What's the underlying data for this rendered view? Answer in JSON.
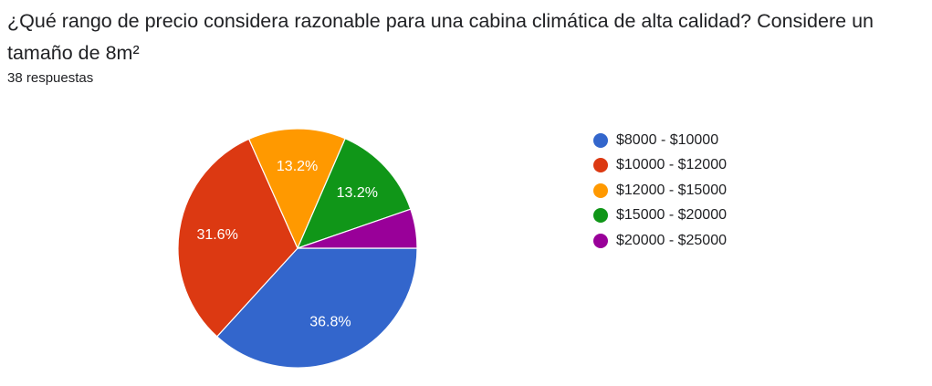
{
  "question": {
    "title": "¿Qué rango de precio considera razonable para una cabina climática de alta calidad?  Considere un tamaño de 8m²",
    "responses": "38 respuestas"
  },
  "chart_data": {
    "type": "pie",
    "title": "¿Qué rango de precio considera razonable para una cabina climática de alta calidad?  Considere un tamaño de 8m²",
    "start": "3 o'clock, clockwise",
    "legend_position": "right",
    "slices": [
      {
        "label": "$8000 - $10000",
        "value": 36.8,
        "display": "36.8%",
        "color": "#3366cc",
        "show_label": true
      },
      {
        "label": "$10000 - $12000",
        "value": 31.6,
        "display": "31.6%",
        "color": "#dc3912",
        "show_label": true
      },
      {
        "label": "$12000 - $15000",
        "value": 13.2,
        "display": "13.2%",
        "color": "#ff9900",
        "show_label": true
      },
      {
        "label": "$15000 - $20000",
        "value": 13.2,
        "display": "13.2%",
        "color": "#109618",
        "show_label": true
      },
      {
        "label": "$20000 - $25000",
        "value": 5.3,
        "display": "",
        "color": "#990099",
        "show_label": false
      }
    ]
  }
}
